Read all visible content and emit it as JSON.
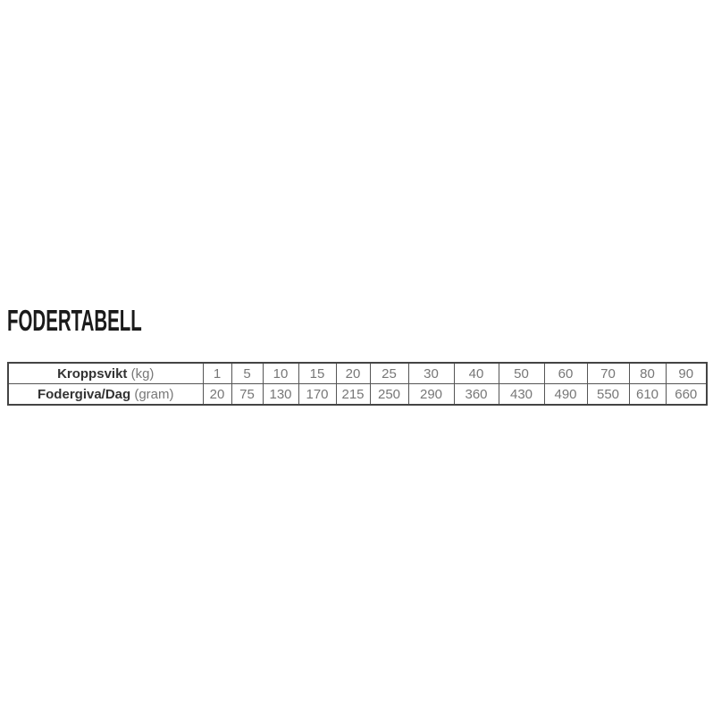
{
  "title": "FODERTABELL",
  "table": {
    "rows": [
      {
        "label_bold": "Kroppsvikt",
        "label_unit": "(kg)",
        "values": [
          "1",
          "5",
          "10",
          "15",
          "20",
          "25",
          "30",
          "40",
          "50",
          "60",
          "70",
          "80",
          "90"
        ]
      },
      {
        "label_bold": "Fodergiva/Dag",
        "label_unit": "(gram)",
        "values": [
          "20",
          "75",
          "130",
          "170",
          "215",
          "250",
          "290",
          "360",
          "430",
          "490",
          "550",
          "610",
          "660"
        ]
      }
    ]
  }
}
